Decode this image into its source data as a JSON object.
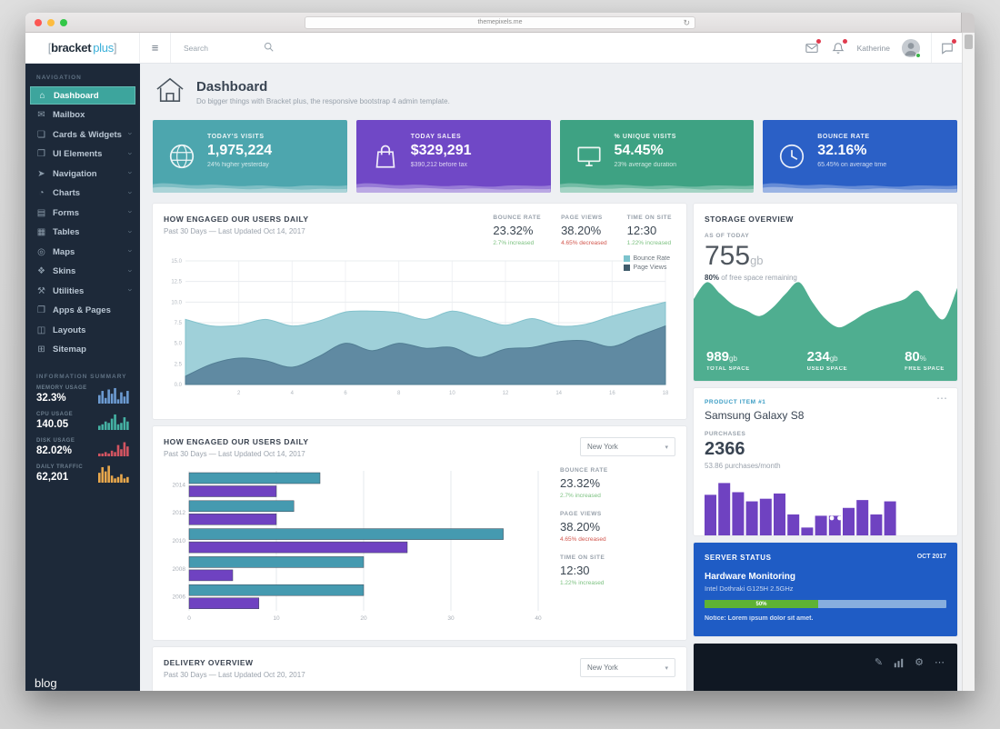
{
  "browser": {
    "url": "themepixels.me"
  },
  "app_header": {
    "logo_prefix": "[",
    "logo_name": "bracket",
    "logo_accent": "plus",
    "logo_suffix": "]",
    "search_placeholder": "Search",
    "user_name": "Katherine"
  },
  "sidebar": {
    "section_nav": "NAVIGATION",
    "items": [
      {
        "label": "Dashboard",
        "icon": "home-icon",
        "active": true,
        "expandable": false
      },
      {
        "label": "Mailbox",
        "icon": "mail-icon",
        "expandable": false
      },
      {
        "label": "Cards & Widgets",
        "icon": "cards-icon",
        "expandable": true
      },
      {
        "label": "UI Elements",
        "icon": "ui-elements-icon",
        "expandable": true
      },
      {
        "label": "Navigation",
        "icon": "navigation-icon",
        "expandable": true
      },
      {
        "label": "Charts",
        "icon": "charts-icon",
        "expandable": true
      },
      {
        "label": "Forms",
        "icon": "forms-icon",
        "expandable": true
      },
      {
        "label": "Tables",
        "icon": "tables-icon",
        "expandable": true
      },
      {
        "label": "Maps",
        "icon": "maps-icon",
        "expandable": true
      },
      {
        "label": "Skins",
        "icon": "skins-icon",
        "expandable": true
      },
      {
        "label": "Utilities",
        "icon": "utilities-icon",
        "expandable": true
      },
      {
        "label": "Apps & Pages",
        "icon": "apps-pages-icon",
        "expandable": false
      },
      {
        "label": "Layouts",
        "icon": "layouts-icon",
        "expandable": false
      },
      {
        "label": "Sitemap",
        "icon": "sitemap-icon",
        "expandable": false
      }
    ],
    "section_summary": "INFORMATION SUMMARY",
    "summary": [
      {
        "label": "MEMORY USAGE",
        "value": "32.3%",
        "color": "#6c9bd2",
        "bars": [
          6,
          9,
          4,
          10,
          7,
          11,
          3,
          8,
          5,
          9
        ]
      },
      {
        "label": "CPU USAGE",
        "value": "140.05",
        "color": "#45b2a4",
        "bars": [
          3,
          4,
          6,
          5,
          8,
          11,
          4,
          5,
          9,
          6
        ]
      },
      {
        "label": "DISK USAGE",
        "value": "82.02%",
        "color": "#d35461",
        "bars": [
          2,
          2,
          3,
          2,
          4,
          3,
          8,
          5,
          10,
          7
        ]
      },
      {
        "label": "DAILY TRAFFIC",
        "value": "62,201",
        "color": "#e9a84c",
        "bars": [
          7,
          11,
          8,
          12,
          5,
          3,
          4,
          6,
          3,
          4
        ]
      }
    ]
  },
  "page": {
    "title": "Dashboard",
    "subtitle": "Do bigger things with Bracket plus, the responsive bootstrap 4 admin template."
  },
  "stat_cards": [
    {
      "label": "TODAY'S VISITS",
      "value": "1,975,224",
      "note": "24% higher yesterday",
      "color": "#4da6ae",
      "icon": "globe-icon"
    },
    {
      "label": "TODAY SALES",
      "value": "$329,291",
      "note": "$390,212 before tax",
      "color": "#7048c6",
      "icon": "shopping-bag-icon"
    },
    {
      "label": "% UNIQUE VISITS",
      "value": "54.45%",
      "note": "23% average duration",
      "color": "#3ea283",
      "icon": "monitor-icon"
    },
    {
      "label": "BOUNCE RATE",
      "value": "32.16%",
      "note": "65.45% on average time",
      "color": "#2b60c6",
      "icon": "clock-icon"
    }
  ],
  "panel_area": {
    "title": "HOW ENGAGED OUR USERS DAILY",
    "subtitle": "Past 30 Days — Last Updated Oct 14, 2017",
    "stats": [
      {
        "label": "BOUNCE RATE",
        "value": "23.32%",
        "note": "2.7% increased",
        "trend": "up"
      },
      {
        "label": "PAGE VIEWS",
        "value": "38.20%",
        "note": "4.65% decreased",
        "trend": "down"
      },
      {
        "label": "TIME ON SITE",
        "value": "12:30",
        "note": "1.22% increased",
        "trend": "up"
      }
    ],
    "legend": [
      {
        "label": "Bounce Rate",
        "color": "#7cc3cd"
      },
      {
        "label": "Page Views",
        "color": "#3f5b6b"
      }
    ],
    "chart": {
      "type": "area",
      "ymax": 15,
      "yticks": [
        0,
        2.5,
        5,
        7.5,
        10,
        12.5,
        15
      ],
      "xticks": [
        2,
        4,
        6,
        8,
        10,
        12,
        14,
        16,
        18
      ],
      "xmax": 18,
      "series": [
        {
          "name": "Bounce Rate",
          "color": "#9fd0d9",
          "stroke": "#83c2cc",
          "values": [
            7.9,
            7.1,
            7.2,
            7.9,
            7.1,
            7.7,
            8.8,
            8.9,
            8.7,
            7.9,
            8.9,
            8.1,
            7.2,
            8.0,
            7.1,
            7.3,
            8.3,
            9.2,
            10.0
          ]
        },
        {
          "name": "Page Views",
          "color": "#5d87a0",
          "stroke": "#4d7990",
          "values": [
            1.0,
            2.5,
            3.2,
            2.9,
            2.1,
            3.4,
            5.0,
            4.1,
            5.0,
            4.4,
            4.5,
            3.3,
            4.3,
            4.5,
            5.2,
            5.3,
            4.6,
            5.9,
            7.1
          ]
        }
      ]
    }
  },
  "panel_bars": {
    "title": "HOW ENGAGED OUR USERS DAILY",
    "subtitle": "Past 30 Days — Last Updated Oct 14, 2017",
    "select_value": "New York",
    "stats": [
      {
        "label": "BOUNCE RATE",
        "value": "23.32%",
        "note": "2.7% increased",
        "trend": "up"
      },
      {
        "label": "PAGE VIEWS",
        "value": "38.20%",
        "note": "4.65% decreased",
        "trend": "down"
      },
      {
        "label": "TIME ON SITE",
        "value": "12:30",
        "note": "1.22% increased",
        "trend": "up"
      }
    ],
    "chart": {
      "type": "bar-horizontal",
      "categories": [
        "2014",
        "2012",
        "2010",
        "2008",
        "2006"
      ],
      "xticks": [
        0,
        10,
        20,
        30,
        40
      ],
      "xmax": 40,
      "series": [
        {
          "name": "Bounce Rate",
          "color": "#459ab0",
          "values": [
            15,
            12,
            36,
            20,
            20
          ]
        },
        {
          "name": "Page Views",
          "color": "#6f42c1",
          "values": [
            10,
            10,
            25,
            5,
            8
          ]
        }
      ]
    }
  },
  "panel_delivery": {
    "title": "DELIVERY OVERVIEW",
    "subtitle": "Past 30 Days — Last Updated Oct 20, 2017",
    "select_value": "New York"
  },
  "storage": {
    "title": "STORAGE OVERVIEW",
    "as_of": "AS OF TODAY",
    "value": "755",
    "unit": "gb",
    "note_strong": "80%",
    "note_rest": " of free space remaining",
    "color": "#4fae90",
    "chart_values": [
      58,
      70,
      62,
      54,
      50,
      46,
      52,
      62,
      70,
      56,
      44,
      38,
      42,
      48,
      52,
      55,
      58,
      64,
      52,
      44,
      66
    ],
    "stats": [
      {
        "value": "989",
        "unit": "gb",
        "label": "TOTAL SPACE"
      },
      {
        "value": "234",
        "unit": "gb",
        "label": "USED SPACE"
      },
      {
        "value": "80",
        "unit": "%",
        "label": "FREE SPACE"
      }
    ]
  },
  "product": {
    "label": "PRODUCT ITEM #1",
    "name": "Samsung Galaxy S8",
    "purchases_label": "PURCHASES",
    "purchases": "2366",
    "note": "53.86 purchases/month",
    "bar_color": "#6f42c1",
    "bars": [
      62,
      80,
      66,
      52,
      56,
      64,
      32,
      12,
      30,
      30,
      42,
      54,
      32,
      52
    ]
  },
  "server": {
    "title": "SERVER STATUS",
    "period": "OCT 2017",
    "heading": "Hardware Monitoring",
    "device": "Intel Dothraki G125H 2.5GHz",
    "progress_label": "50%",
    "progress_pct": 50,
    "notice": "Notice: Lorem ipsum dolor sit amet.",
    "bg": "#1f5cc5",
    "bar_color": "#5eb234"
  },
  "tools_panel": {
    "icons": [
      "pencil-icon",
      "bar-chart-icon",
      "gear-icon",
      "ellipsis-icon"
    ]
  },
  "watermark": "blog"
}
